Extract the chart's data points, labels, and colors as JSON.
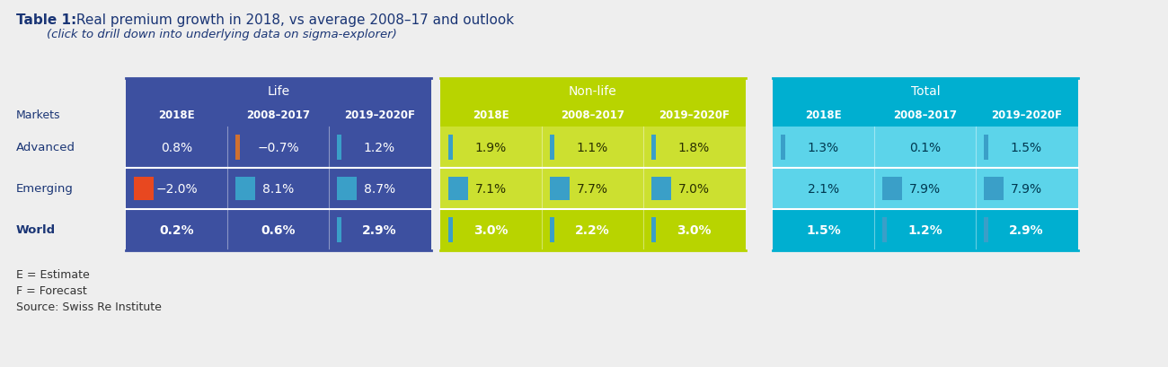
{
  "title_bold": "Table 1:",
  "title_regular": " Real premium growth in 2018, vs average 2008–17 and outlook",
  "subtitle": "        (click to drill down into underlying data on sigma-explorer)",
  "col_headers": [
    "2018E",
    "2008–2017",
    "2019–2020F"
  ],
  "life_data": [
    [
      "0.8%",
      "−0.7%",
      "1.2%"
    ],
    [
      "−2.0%",
      "8.1%",
      "8.7%"
    ],
    [
      "0.2%",
      "0.6%",
      "2.9%"
    ]
  ],
  "nonlife_data": [
    [
      "1.9%",
      "1.1%",
      "1.8%"
    ],
    [
      "7.1%",
      "7.7%",
      "7.0%"
    ],
    [
      "3.0%",
      "2.2%",
      "3.0%"
    ]
  ],
  "total_data": [
    [
      "1.3%",
      "0.1%",
      "1.5%"
    ],
    [
      "2.1%",
      "7.9%",
      "7.9%"
    ],
    [
      "1.5%",
      "1.2%",
      "2.9%"
    ]
  ],
  "footnotes": [
    "E = Estimate",
    "F = Forecast",
    "Source: Swiss Re Institute"
  ],
  "life_bg_header": "#3d50a0",
  "life_bg_row": "#3d50a0",
  "life_bg_world": "#3d50a0",
  "nonlife_bg_header": "#b8d400",
  "nonlife_bg_row": "#cce030",
  "nonlife_bg_world": "#b8d400",
  "total_bg_header": "#00afd0",
  "total_bg_row": "#5cd4ea",
  "total_bg_world": "#00afd0",
  "white": "#ffffff",
  "dark_blue": "#1a3575",
  "bar_colors": {
    "red": "#e84820",
    "orange": "#d07030",
    "blue_thin": "#3a9fc8",
    "blue_sq": "#3a9fc8"
  },
  "bar_indicators_life": [
    [
      null,
      "orange",
      "blue_thin"
    ],
    [
      "red",
      "blue_sq",
      "blue_sq"
    ],
    [
      null,
      null,
      "blue_thin"
    ]
  ],
  "bar_indicators_nonlife": [
    [
      "blue_thin",
      "blue_thin",
      "blue_thin"
    ],
    [
      "blue_sq",
      "blue_sq",
      "blue_sq"
    ],
    [
      "blue_thin",
      "blue_thin",
      "blue_thin"
    ]
  ],
  "bar_indicators_total": [
    [
      "blue_thin",
      null,
      "blue_thin"
    ],
    [
      null,
      "blue_sq",
      "blue_sq"
    ],
    [
      null,
      "blue_thin",
      "blue_thin"
    ]
  ]
}
